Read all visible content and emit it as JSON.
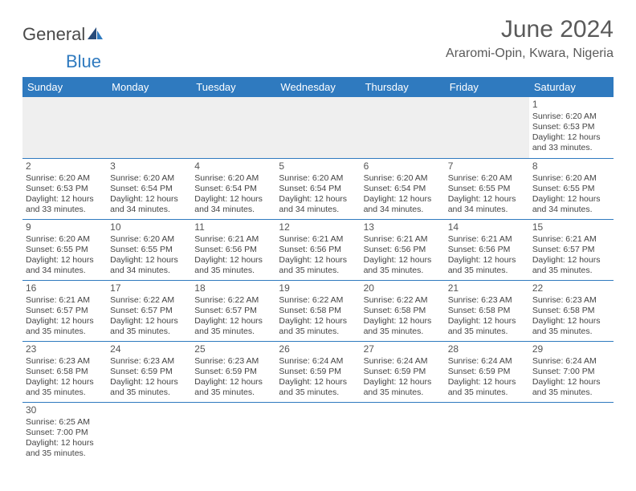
{
  "brand": {
    "part1": "General",
    "part2": "Blue"
  },
  "title": "June 2024",
  "location": "Araromi-Opin, Kwara, Nigeria",
  "colors": {
    "header_bg": "#2f7abf",
    "header_text": "#ffffff",
    "border": "#2f7abf",
    "text": "#444444",
    "empty_bg": "#efefef"
  },
  "day_headers": [
    "Sunday",
    "Monday",
    "Tuesday",
    "Wednesday",
    "Thursday",
    "Friday",
    "Saturday"
  ],
  "weeks": [
    [
      null,
      null,
      null,
      null,
      null,
      null,
      {
        "n": "1",
        "sunrise": "Sunrise: 6:20 AM",
        "sunset": "Sunset: 6:53 PM",
        "daylight": "Daylight: 12 hours and 33 minutes."
      }
    ],
    [
      {
        "n": "2",
        "sunrise": "Sunrise: 6:20 AM",
        "sunset": "Sunset: 6:53 PM",
        "daylight": "Daylight: 12 hours and 33 minutes."
      },
      {
        "n": "3",
        "sunrise": "Sunrise: 6:20 AM",
        "sunset": "Sunset: 6:54 PM",
        "daylight": "Daylight: 12 hours and 34 minutes."
      },
      {
        "n": "4",
        "sunrise": "Sunrise: 6:20 AM",
        "sunset": "Sunset: 6:54 PM",
        "daylight": "Daylight: 12 hours and 34 minutes."
      },
      {
        "n": "5",
        "sunrise": "Sunrise: 6:20 AM",
        "sunset": "Sunset: 6:54 PM",
        "daylight": "Daylight: 12 hours and 34 minutes."
      },
      {
        "n": "6",
        "sunrise": "Sunrise: 6:20 AM",
        "sunset": "Sunset: 6:54 PM",
        "daylight": "Daylight: 12 hours and 34 minutes."
      },
      {
        "n": "7",
        "sunrise": "Sunrise: 6:20 AM",
        "sunset": "Sunset: 6:55 PM",
        "daylight": "Daylight: 12 hours and 34 minutes."
      },
      {
        "n": "8",
        "sunrise": "Sunrise: 6:20 AM",
        "sunset": "Sunset: 6:55 PM",
        "daylight": "Daylight: 12 hours and 34 minutes."
      }
    ],
    [
      {
        "n": "9",
        "sunrise": "Sunrise: 6:20 AM",
        "sunset": "Sunset: 6:55 PM",
        "daylight": "Daylight: 12 hours and 34 minutes."
      },
      {
        "n": "10",
        "sunrise": "Sunrise: 6:20 AM",
        "sunset": "Sunset: 6:55 PM",
        "daylight": "Daylight: 12 hours and 34 minutes."
      },
      {
        "n": "11",
        "sunrise": "Sunrise: 6:21 AM",
        "sunset": "Sunset: 6:56 PM",
        "daylight": "Daylight: 12 hours and 35 minutes."
      },
      {
        "n": "12",
        "sunrise": "Sunrise: 6:21 AM",
        "sunset": "Sunset: 6:56 PM",
        "daylight": "Daylight: 12 hours and 35 minutes."
      },
      {
        "n": "13",
        "sunrise": "Sunrise: 6:21 AM",
        "sunset": "Sunset: 6:56 PM",
        "daylight": "Daylight: 12 hours and 35 minutes."
      },
      {
        "n": "14",
        "sunrise": "Sunrise: 6:21 AM",
        "sunset": "Sunset: 6:56 PM",
        "daylight": "Daylight: 12 hours and 35 minutes."
      },
      {
        "n": "15",
        "sunrise": "Sunrise: 6:21 AM",
        "sunset": "Sunset: 6:57 PM",
        "daylight": "Daylight: 12 hours and 35 minutes."
      }
    ],
    [
      {
        "n": "16",
        "sunrise": "Sunrise: 6:21 AM",
        "sunset": "Sunset: 6:57 PM",
        "daylight": "Daylight: 12 hours and 35 minutes."
      },
      {
        "n": "17",
        "sunrise": "Sunrise: 6:22 AM",
        "sunset": "Sunset: 6:57 PM",
        "daylight": "Daylight: 12 hours and 35 minutes."
      },
      {
        "n": "18",
        "sunrise": "Sunrise: 6:22 AM",
        "sunset": "Sunset: 6:57 PM",
        "daylight": "Daylight: 12 hours and 35 minutes."
      },
      {
        "n": "19",
        "sunrise": "Sunrise: 6:22 AM",
        "sunset": "Sunset: 6:58 PM",
        "daylight": "Daylight: 12 hours and 35 minutes."
      },
      {
        "n": "20",
        "sunrise": "Sunrise: 6:22 AM",
        "sunset": "Sunset: 6:58 PM",
        "daylight": "Daylight: 12 hours and 35 minutes."
      },
      {
        "n": "21",
        "sunrise": "Sunrise: 6:23 AM",
        "sunset": "Sunset: 6:58 PM",
        "daylight": "Daylight: 12 hours and 35 minutes."
      },
      {
        "n": "22",
        "sunrise": "Sunrise: 6:23 AM",
        "sunset": "Sunset: 6:58 PM",
        "daylight": "Daylight: 12 hours and 35 minutes."
      }
    ],
    [
      {
        "n": "23",
        "sunrise": "Sunrise: 6:23 AM",
        "sunset": "Sunset: 6:58 PM",
        "daylight": "Daylight: 12 hours and 35 minutes."
      },
      {
        "n": "24",
        "sunrise": "Sunrise: 6:23 AM",
        "sunset": "Sunset: 6:59 PM",
        "daylight": "Daylight: 12 hours and 35 minutes."
      },
      {
        "n": "25",
        "sunrise": "Sunrise: 6:23 AM",
        "sunset": "Sunset: 6:59 PM",
        "daylight": "Daylight: 12 hours and 35 minutes."
      },
      {
        "n": "26",
        "sunrise": "Sunrise: 6:24 AM",
        "sunset": "Sunset: 6:59 PM",
        "daylight": "Daylight: 12 hours and 35 minutes."
      },
      {
        "n": "27",
        "sunrise": "Sunrise: 6:24 AM",
        "sunset": "Sunset: 6:59 PM",
        "daylight": "Daylight: 12 hours and 35 minutes."
      },
      {
        "n": "28",
        "sunrise": "Sunrise: 6:24 AM",
        "sunset": "Sunset: 6:59 PM",
        "daylight": "Daylight: 12 hours and 35 minutes."
      },
      {
        "n": "29",
        "sunrise": "Sunrise: 6:24 AM",
        "sunset": "Sunset: 7:00 PM",
        "daylight": "Daylight: 12 hours and 35 minutes."
      }
    ],
    [
      {
        "n": "30",
        "sunrise": "Sunrise: 6:25 AM",
        "sunset": "Sunset: 7:00 PM",
        "daylight": "Daylight: 12 hours and 35 minutes."
      },
      null,
      null,
      null,
      null,
      null,
      null
    ]
  ]
}
